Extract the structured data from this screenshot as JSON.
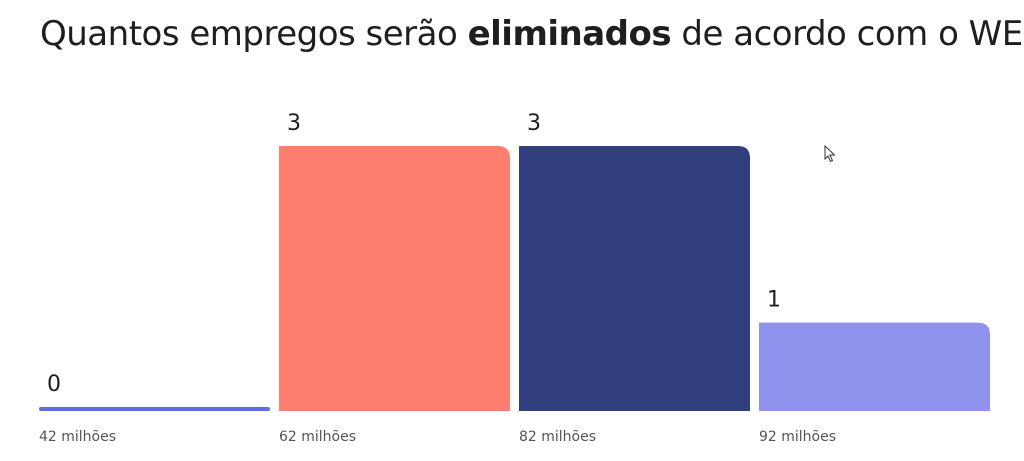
{
  "title": {
    "prefix": "Quantos empregos serão ",
    "emphasis": "eliminados",
    "suffix": " de acordo com o WEF?"
  },
  "chart_data": {
    "type": "bar",
    "categories": [
      "42 milhões",
      "62 milhões",
      "82 milhões",
      "92 milhões"
    ],
    "values": [
      0,
      3,
      3,
      1
    ],
    "colors": [
      "#5b6fe0",
      "#ff7f6e",
      "#323f7e",
      "#8f93ee"
    ],
    "ylim": [
      0,
      3
    ],
    "grid": false,
    "legend": "none"
  }
}
